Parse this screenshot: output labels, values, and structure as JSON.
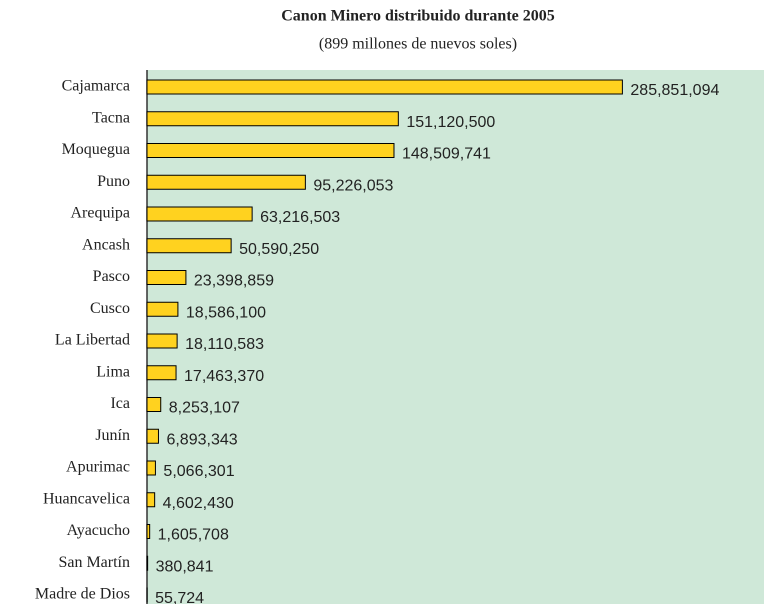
{
  "chart_data": {
    "type": "barh",
    "title": "Canon  Minero distribuido durante 2005",
    "subtitle": "(899 millones de nuevos soles)",
    "categories": [
      "Cajamarca",
      "Tacna",
      "Moquegua",
      "Puno",
      "Arequipa",
      "Ancash",
      "Pasco",
      "Cusco",
      "La Libertad",
      "Lima",
      "Ica",
      "Junín",
      "Apurimac",
      "Huancavelica",
      "Ayacucho",
      "San Martín",
      "Madre de Dios"
    ],
    "values": [
      285851094,
      151120500,
      148509741,
      95226053,
      63216503,
      50590250,
      23398859,
      18586100,
      18110583,
      17463370,
      8253107,
      6893343,
      5066301,
      4602430,
      1605708,
      380841,
      55724
    ],
    "value_labels": [
      "285,851,094",
      "151,120,500",
      "148,509,741",
      "95,226,053",
      "63,216,503",
      "50,590,250",
      "23,398,859",
      "18,586,100",
      "18,110,583",
      "17,463,370",
      "8,253,107",
      "6,893,343",
      "5,066,301",
      "4,602,430",
      "1,605,708",
      "380,841",
      "55,724"
    ],
    "color": "#ffd21f",
    "background": "#cfe8d8",
    "xlim": [
      0,
      371000000
    ]
  }
}
